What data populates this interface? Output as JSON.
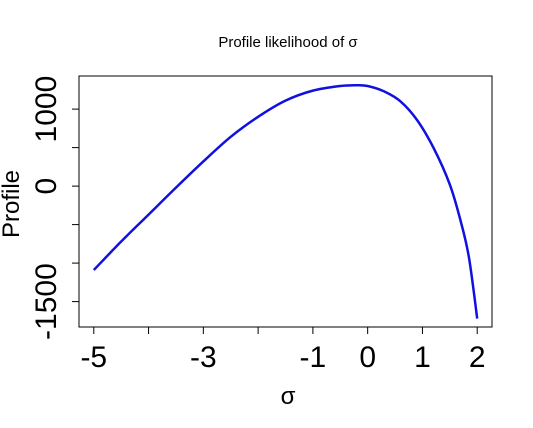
{
  "chart_data": {
    "type": "line",
    "title": "Profile likelihood of σ",
    "xlabel": "σ",
    "ylabel": "Profile",
    "xlim": [
      -5.27,
      2.27
    ],
    "ylim": [
      -1830,
      1430
    ],
    "x_ticks": [
      -5,
      -4,
      -3,
      -2,
      -1,
      0,
      1,
      2
    ],
    "x_tick_labels": [
      "-5",
      "",
      "-3",
      "",
      "-1",
      "0",
      "1",
      "2"
    ],
    "y_ticks": [
      -1500,
      -1000,
      -500,
      0,
      500,
      1000
    ],
    "y_tick_labels": [
      "-1500",
      "",
      "",
      "0",
      "",
      "1000"
    ],
    "grid": false,
    "series": [
      {
        "color": "#1010e0",
        "x": [
          -5.0,
          -4.5,
          -4.0,
          -3.5,
          -3.0,
          -2.5,
          -2.0,
          -1.5,
          -1.0,
          -0.5,
          -0.2,
          0.0,
          0.3,
          0.6,
          0.9,
          1.2,
          1.5,
          1.7,
          1.85,
          2.0
        ],
        "y": [
          -1090,
          -720,
          -370,
          -20,
          320,
          640,
          900,
          1110,
          1240,
          1300,
          1310,
          1300,
          1230,
          1100,
          860,
          500,
          20,
          -460,
          -930,
          -1720
        ]
      }
    ]
  }
}
